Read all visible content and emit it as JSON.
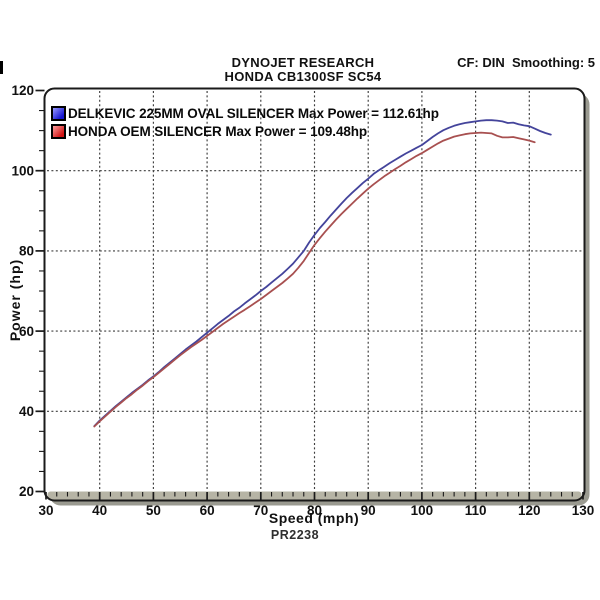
{
  "header": {
    "title_line1": "DYNOJET RESEARCH",
    "title_line2": "HONDA CB1300SF SC54",
    "correction_info": "CF: DIN  Smoothing: 5"
  },
  "footer": {
    "run_id": "PR2238"
  },
  "chart_data": {
    "type": "line",
    "title": "DYNOJET RESEARCH - HONDA CB1300SF SC54",
    "xlabel": "Speed (mph)",
    "ylabel": "Power (hp)",
    "xlim": [
      30,
      130
    ],
    "ylim": [
      20,
      120
    ],
    "x_major_tick": 10,
    "x_minor_tick": 2,
    "y_major_tick": 20,
    "y_minor_tick": 5,
    "x_ticks": [
      30,
      40,
      50,
      60,
      70,
      80,
      90,
      100,
      110,
      120,
      130
    ],
    "y_ticks": [
      20,
      40,
      60,
      80,
      100,
      120
    ],
    "grid": "dashed",
    "legend_position": "top-left-inside",
    "colors": {
      "plot_bg": "#ffffff",
      "frame": "#1a1a1a",
      "frame_shadow": "#9a9a90",
      "tick_band": "#b6b4a5",
      "grid": "#3d3d3d",
      "tick": "#1a1a1a"
    },
    "series": [
      {
        "name": "DELKEVIC 225MM OVAL SILENCER",
        "legend_label": "DELKEVIC 225MM OVAL SILENCER Max Power = 112.61hp",
        "max_power_hp": 112.61,
        "color": "#44449b",
        "swatch_colors": [
          "#9999ff",
          "#1414d0"
        ],
        "points": [
          [
            39,
            36.3
          ],
          [
            40,
            37.7
          ],
          [
            41,
            38.9
          ],
          [
            42,
            40.1
          ],
          [
            43,
            41.3
          ],
          [
            44,
            42.4
          ],
          [
            45,
            43.5
          ],
          [
            46,
            44.6
          ],
          [
            47,
            45.6
          ],
          [
            48,
            46.6
          ],
          [
            49,
            47.7
          ],
          [
            50,
            48.7
          ],
          [
            51,
            49.8
          ],
          [
            52,
            51.0
          ],
          [
            53,
            52.1
          ],
          [
            54,
            53.2
          ],
          [
            55,
            54.3
          ],
          [
            56,
            55.4
          ],
          [
            57,
            56.4
          ],
          [
            58,
            57.4
          ],
          [
            59,
            58.5
          ],
          [
            60,
            59.6
          ],
          [
            61,
            60.7
          ],
          [
            62,
            61.8
          ],
          [
            63,
            62.8
          ],
          [
            64,
            63.8
          ],
          [
            65,
            64.9
          ],
          [
            66,
            65.8
          ],
          [
            67,
            66.9
          ],
          [
            68,
            67.9
          ],
          [
            69,
            68.9
          ],
          [
            70,
            70.0
          ],
          [
            71,
            71.0
          ],
          [
            72,
            72.1
          ],
          [
            73,
            73.2
          ],
          [
            74,
            74.3
          ],
          [
            75,
            75.5
          ],
          [
            76,
            76.8
          ],
          [
            77,
            78.4
          ],
          [
            78,
            80.0
          ],
          [
            79,
            82.1
          ],
          [
            80,
            84.0
          ],
          [
            81,
            85.7
          ],
          [
            82,
            87.2
          ],
          [
            83,
            88.8
          ],
          [
            84,
            90.3
          ],
          [
            85,
            91.8
          ],
          [
            86,
            93.2
          ],
          [
            87,
            94.5
          ],
          [
            88,
            95.7
          ],
          [
            89,
            96.9
          ],
          [
            90,
            98.0
          ],
          [
            91,
            99.2
          ],
          [
            92,
            100.1
          ],
          [
            93,
            101.0
          ],
          [
            94,
            101.9
          ],
          [
            95,
            102.7
          ],
          [
            96,
            103.5
          ],
          [
            97,
            104.3
          ],
          [
            98,
            105.0
          ],
          [
            99,
            105.7
          ],
          [
            100,
            106.4
          ],
          [
            101,
            107.4
          ],
          [
            102,
            108.4
          ],
          [
            103,
            109.3
          ],
          [
            104,
            110.1
          ],
          [
            105,
            110.7
          ],
          [
            106,
            111.2
          ],
          [
            107,
            111.6
          ],
          [
            108,
            111.9
          ],
          [
            109,
            112.1
          ],
          [
            110,
            112.3
          ],
          [
            111,
            112.5
          ],
          [
            112,
            112.6
          ],
          [
            113,
            112.6
          ],
          [
            114,
            112.5
          ],
          [
            115,
            112.3
          ],
          [
            116,
            111.9
          ],
          [
            117,
            112.0
          ],
          [
            118,
            111.6
          ],
          [
            119,
            111.3
          ],
          [
            120,
            111.1
          ],
          [
            121,
            110.5
          ],
          [
            122,
            109.9
          ],
          [
            123,
            109.4
          ],
          [
            124,
            109.0
          ]
        ]
      },
      {
        "name": "HONDA OEM SILENCER",
        "legend_label": "HONDA OEM SILENCER Max Power = 109.48hp",
        "max_power_hp": 109.48,
        "color": "#a85050",
        "swatch_colors": [
          "#ff9f9f",
          "#d01414"
        ],
        "points": [
          [
            39,
            36.2
          ],
          [
            40,
            37.5
          ],
          [
            41,
            38.7
          ],
          [
            42,
            39.9
          ],
          [
            43,
            41.1
          ],
          [
            44,
            42.2
          ],
          [
            45,
            43.3
          ],
          [
            46,
            44.3
          ],
          [
            47,
            45.4
          ],
          [
            48,
            46.4
          ],
          [
            49,
            47.5
          ],
          [
            50,
            48.5
          ],
          [
            51,
            49.6
          ],
          [
            52,
            50.7
          ],
          [
            53,
            51.8
          ],
          [
            54,
            52.9
          ],
          [
            55,
            54.0
          ],
          [
            56,
            55.0
          ],
          [
            57,
            56.0
          ],
          [
            58,
            56.9
          ],
          [
            59,
            57.8
          ],
          [
            60,
            58.8
          ],
          [
            61,
            59.8
          ],
          [
            62,
            60.8
          ],
          [
            63,
            61.8
          ],
          [
            64,
            62.7
          ],
          [
            65,
            63.6
          ],
          [
            66,
            64.5
          ],
          [
            67,
            65.3
          ],
          [
            68,
            66.2
          ],
          [
            69,
            67.1
          ],
          [
            70,
            68.0
          ],
          [
            71,
            69.0
          ],
          [
            72,
            70.0
          ],
          [
            73,
            71.0
          ],
          [
            74,
            72.0
          ],
          [
            75,
            73.1
          ],
          [
            76,
            74.3
          ],
          [
            77,
            75.8
          ],
          [
            78,
            77.5
          ],
          [
            79,
            79.5
          ],
          [
            80,
            81.5
          ],
          [
            81,
            83.2
          ],
          [
            82,
            84.8
          ],
          [
            83,
            86.3
          ],
          [
            84,
            87.8
          ],
          [
            85,
            89.2
          ],
          [
            86,
            90.5
          ],
          [
            87,
            91.8
          ],
          [
            88,
            93.1
          ],
          [
            89,
            94.3
          ],
          [
            90,
            95.5
          ],
          [
            91,
            96.6
          ],
          [
            92,
            97.6
          ],
          [
            93,
            98.6
          ],
          [
            94,
            99.5
          ],
          [
            95,
            100.4
          ],
          [
            96,
            101.2
          ],
          [
            97,
            102.1
          ],
          [
            98,
            102.9
          ],
          [
            99,
            103.7
          ],
          [
            100,
            104.4
          ],
          [
            101,
            105.2
          ],
          [
            102,
            106.0
          ],
          [
            103,
            106.8
          ],
          [
            104,
            107.5
          ],
          [
            105,
            108.0
          ],
          [
            106,
            108.5
          ],
          [
            107,
            108.8
          ],
          [
            108,
            109.1
          ],
          [
            109,
            109.3
          ],
          [
            110,
            109.4
          ],
          [
            111,
            109.5
          ],
          [
            112,
            109.4
          ],
          [
            113,
            109.3
          ],
          [
            114,
            108.7
          ],
          [
            115,
            108.3
          ],
          [
            116,
            108.3
          ],
          [
            117,
            108.4
          ],
          [
            118,
            108.1
          ],
          [
            119,
            107.8
          ],
          [
            120,
            107.5
          ],
          [
            121,
            107.1
          ]
        ]
      }
    ]
  }
}
